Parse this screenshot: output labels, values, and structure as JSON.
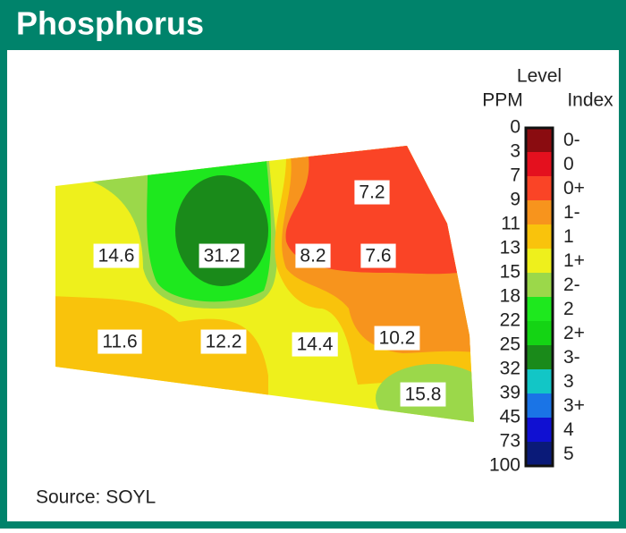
{
  "header": {
    "title": "Phosphorus"
  },
  "samples": [
    14.6,
    31.2,
    8.2,
    7.6,
    7.2,
    11.6,
    12.2,
    14.4,
    10.2,
    15.8
  ],
  "legend": {
    "title": "Level",
    "ppm_label": "PPM",
    "index_label": "Index",
    "ppm": [
      0,
      3,
      7,
      9,
      11,
      13,
      15,
      18,
      22,
      25,
      32,
      39,
      45,
      73,
      100
    ],
    "index": [
      "0-",
      "0",
      "0+",
      "1-",
      "1",
      "1+",
      "2-",
      "2",
      "2+",
      "3-",
      "3",
      "3+",
      "4",
      "5"
    ],
    "colors": [
      "#8a0c10",
      "#e4101e",
      "#fa4426",
      "#f7941d",
      "#f9c30c",
      "#eef01c",
      "#9bd84a",
      "#1ee81e",
      "#14d414",
      "#1a8a1a",
      "#12c6c6",
      "#1a74e6",
      "#1010d2",
      "#0a1a78"
    ]
  },
  "source": "Source: SOYL"
}
